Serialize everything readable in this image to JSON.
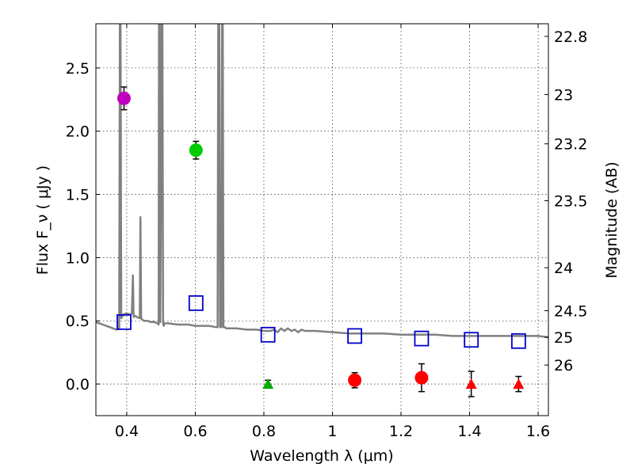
{
  "chart_data": {
    "type": "scatter",
    "title": "",
    "xlabel": "Wavelength  λ (μm)",
    "ylabel": "Flux  F_ν  ( μJy )",
    "ylabel_right": "Magnitude (AB)",
    "xlim": [
      0.31,
      1.63
    ],
    "ylim": [
      -0.25,
      2.85
    ],
    "grid": true,
    "x_ticks": [
      0.4,
      0.6,
      0.8,
      1.0,
      1.2,
      1.4,
      1.6
    ],
    "x_tick_labels": [
      "0.4",
      "0.6",
      "0.8",
      "1",
      "1.2",
      "1.4",
      "1.6"
    ],
    "y_ticks": [
      0.0,
      0.5,
      1.0,
      1.5,
      2.0,
      2.5
    ],
    "y_tick_labels": [
      "0.0",
      "0.5",
      "1.0",
      "1.5",
      "2.0",
      "2.5"
    ],
    "right_ticks": [
      {
        "flux": 2.75,
        "label": "22.8"
      },
      {
        "flux": 2.29,
        "label": "23"
      },
      {
        "flux": 1.9,
        "label": "23.2"
      },
      {
        "flux": 1.45,
        "label": "23.5"
      },
      {
        "flux": 0.92,
        "label": "24"
      },
      {
        "flux": 0.58,
        "label": "24.5"
      },
      {
        "flux": 0.37,
        "label": "25"
      },
      {
        "flux": 0.15,
        "label": "26"
      }
    ],
    "series": [
      {
        "name": "photometry-violet",
        "marker": "circle",
        "color": "#bf00bf",
        "points": [
          {
            "x": 0.392,
            "y": 2.26,
            "err": 0.09
          }
        ]
      },
      {
        "name": "photometry-green",
        "marker": "circle",
        "color": "#00cc00",
        "points": [
          {
            "x": 0.602,
            "y": 1.85,
            "err": 0.07
          }
        ]
      },
      {
        "name": "photometry-red",
        "marker": "circle",
        "color": "#ff0000",
        "points": [
          {
            "x": 1.065,
            "y": 0.03,
            "err": 0.06
          },
          {
            "x": 1.26,
            "y": 0.05,
            "err": 0.11
          }
        ]
      },
      {
        "name": "upper-limit-green",
        "marker": "triangle",
        "color": "#00aa00",
        "points": [
          {
            "x": 0.812,
            "y": 0.0,
            "err": 0.03
          }
        ]
      },
      {
        "name": "upper-limit-red",
        "marker": "triangle",
        "color": "#ff0000",
        "points": [
          {
            "x": 1.405,
            "y": 0.0,
            "err": 0.1
          },
          {
            "x": 1.543,
            "y": 0.0,
            "err": 0.06
          }
        ]
      },
      {
        "name": "model-synthetic",
        "marker": "square-open",
        "color": "#0000cc",
        "points": [
          {
            "x": 0.392,
            "y": 0.49
          },
          {
            "x": 0.602,
            "y": 0.64
          },
          {
            "x": 0.812,
            "y": 0.39
          },
          {
            "x": 1.065,
            "y": 0.38
          },
          {
            "x": 1.26,
            "y": 0.36
          },
          {
            "x": 1.405,
            "y": 0.35
          },
          {
            "x": 1.543,
            "y": 0.34
          }
        ]
      },
      {
        "name": "template-spectrum",
        "type": "line",
        "color": "#808080",
        "x": [
          0.31,
          0.33,
          0.35,
          0.37,
          0.378,
          0.38,
          0.382,
          0.384,
          0.386,
          0.39,
          0.4,
          0.41,
          0.415,
          0.418,
          0.42,
          0.425,
          0.43,
          0.438,
          0.44,
          0.442,
          0.445,
          0.45,
          0.46,
          0.47,
          0.48,
          0.49,
          0.493,
          0.494,
          0.496,
          0.498,
          0.502,
          0.504,
          0.506,
          0.508,
          0.51,
          0.52,
          0.55,
          0.58,
          0.6,
          0.62,
          0.64,
          0.66,
          0.665,
          0.667,
          0.67,
          0.672,
          0.676,
          0.678,
          0.68,
          0.682,
          0.686,
          0.69,
          0.72,
          0.75,
          0.78,
          0.8,
          0.82,
          0.83,
          0.84,
          0.85,
          0.86,
          0.87,
          0.88,
          0.89,
          0.9,
          0.91,
          0.92,
          0.93,
          0.95,
          1.0,
          1.05,
          1.1,
          1.15,
          1.2,
          1.25,
          1.3,
          1.35,
          1.4,
          1.45,
          1.5,
          1.55,
          1.6,
          1.63
        ],
        "y": [
          0.49,
          0.47,
          0.45,
          0.43,
          0.44,
          2.85,
          2.85,
          0.52,
          0.53,
          0.55,
          0.56,
          0.55,
          0.56,
          0.86,
          0.53,
          0.54,
          0.53,
          0.52,
          1.32,
          0.52,
          0.51,
          0.5,
          0.5,
          0.49,
          0.49,
          0.48,
          0.47,
          2.85,
          2.85,
          0.49,
          2.85,
          2.85,
          0.48,
          0.46,
          0.48,
          0.48,
          0.47,
          0.47,
          0.46,
          0.46,
          0.46,
          0.45,
          0.45,
          2.85,
          2.85,
          0.45,
          0.45,
          2.85,
          2.85,
          0.45,
          0.45,
          0.44,
          0.44,
          0.43,
          0.43,
          0.42,
          0.42,
          0.43,
          0.41,
          0.44,
          0.42,
          0.44,
          0.42,
          0.43,
          0.41,
          0.43,
          0.42,
          0.42,
          0.42,
          0.41,
          0.4,
          0.4,
          0.4,
          0.39,
          0.39,
          0.39,
          0.38,
          0.38,
          0.38,
          0.38,
          0.38,
          0.38,
          0.37
        ]
      }
    ]
  }
}
